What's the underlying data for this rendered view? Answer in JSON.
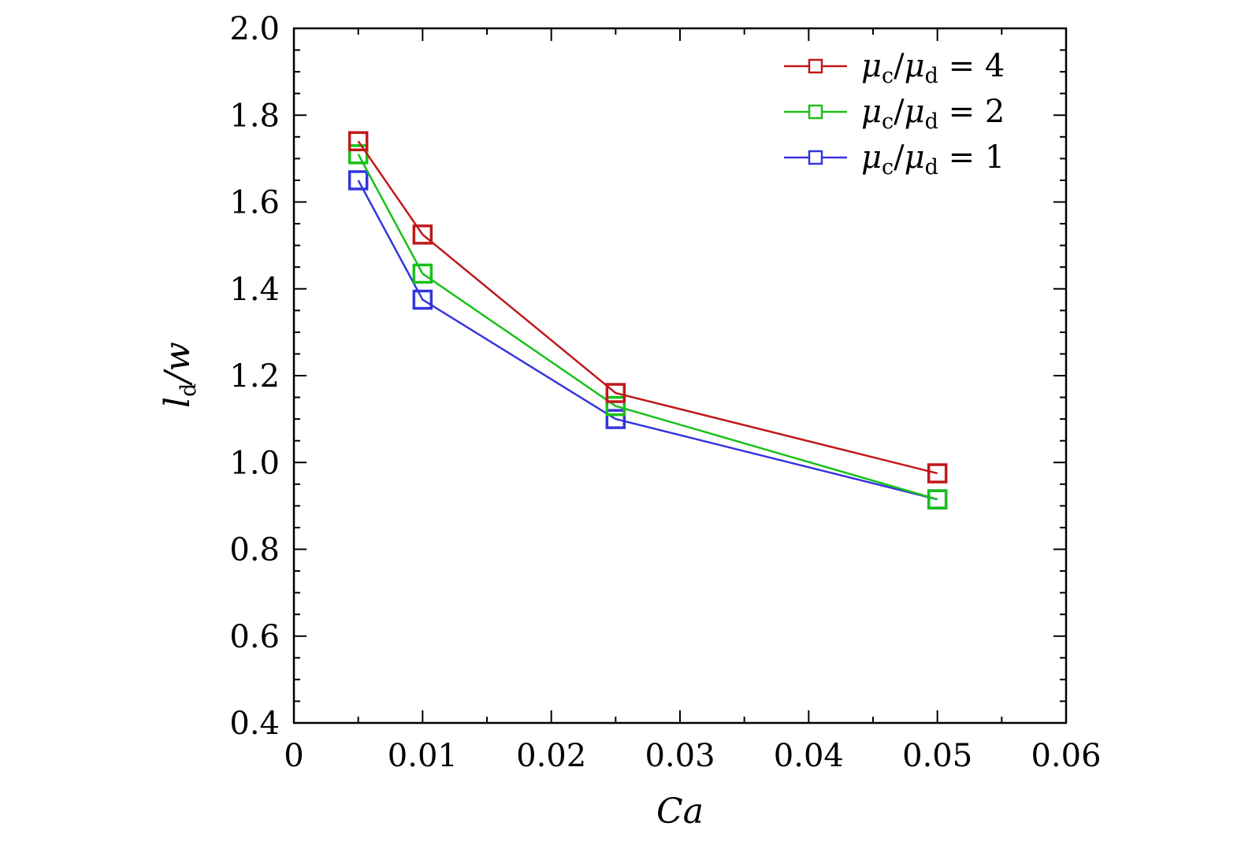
{
  "chart_data": {
    "type": "line",
    "title": "",
    "xlabel": "Ca",
    "ylabel": {
      "base": "l",
      "sub": "d",
      "rest": "/w"
    },
    "xlim": [
      0,
      0.06
    ],
    "ylim": [
      0.4,
      2.0
    ],
    "x_ticks": [
      0,
      0.01,
      0.02,
      0.03,
      0.04,
      0.05,
      0.06
    ],
    "x_tick_labels": [
      "0",
      "0.01",
      "0.02",
      "0.03",
      "0.04",
      "0.05",
      "0.06"
    ],
    "y_ticks": [
      0.4,
      0.6,
      0.8,
      1.0,
      1.2,
      1.4,
      1.6,
      1.8,
      2.0
    ],
    "y_tick_labels": [
      "0.4",
      "0.6",
      "0.8",
      "1.0",
      "1.2",
      "1.4",
      "1.6",
      "1.8",
      "2.0"
    ],
    "grid": false,
    "legend_position": "top-right",
    "marker": "square",
    "x": [
      0.005,
      0.01,
      0.025,
      0.05
    ],
    "series": [
      {
        "name": "μc/μd = 4",
        "ratio": "4",
        "color": "#c0191b",
        "values": [
          1.74,
          1.525,
          1.16,
          0.975
        ]
      },
      {
        "name": "μc/μd = 2",
        "ratio": "2",
        "color": "#19c019",
        "values": [
          1.71,
          1.435,
          1.13,
          0.915
        ]
      },
      {
        "name": "μc/μd = 1",
        "ratio": "1",
        "color": "#3535dd",
        "values": [
          1.65,
          1.375,
          1.1,
          0.915
        ]
      }
    ],
    "legend_symbols": {
      "mu": "μ",
      "c": "c",
      "d": "d",
      "slash": "/",
      "eq": "="
    }
  }
}
